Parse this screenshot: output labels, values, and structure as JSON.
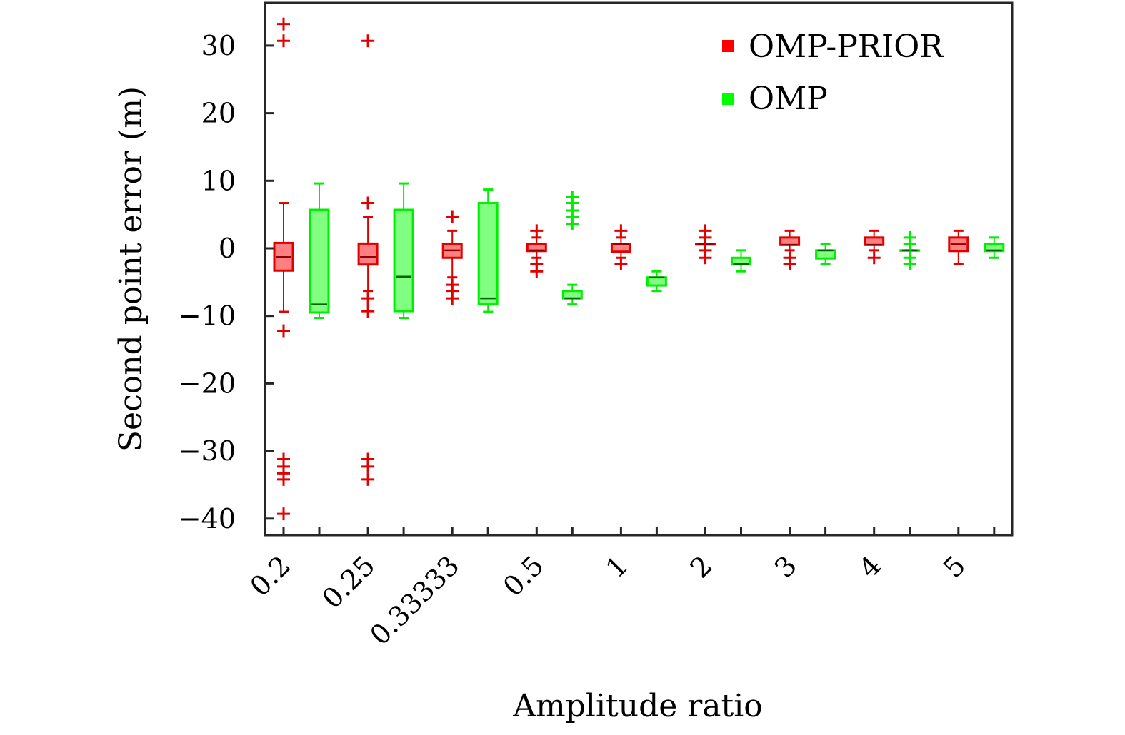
{
  "chart_data": {
    "type": "box",
    "title": "",
    "xlabel": "Amplitude ratio",
    "ylabel": "Second point error (m)",
    "ylim": [
      -42.4,
      36.3
    ],
    "yticks": [
      30,
      20,
      10,
      0,
      -10,
      -20,
      -30,
      -40
    ],
    "ytick_labels": [
      "30",
      "20",
      "10",
      "0",
      "−10",
      "−20",
      "−30",
      "−40"
    ],
    "categories": [
      "0.2",
      "0.25",
      "0.33333",
      "0.5",
      "1",
      "2",
      "3",
      "4",
      "5"
    ],
    "grid": false,
    "legend": {
      "position": "top-right",
      "entries": [
        {
          "label": "OMP-PRIOR",
          "color": "#ff0000"
        },
        {
          "label": "OMP",
          "color": "#00ff00"
        }
      ]
    },
    "series": [
      {
        "name": "OMP-PRIOR",
        "color": "#e00000",
        "fill": "#ff8080",
        "median_color": "#8b0000",
        "boxes": [
          {
            "low": -9.4,
            "q1": -3.3,
            "median": -1.3,
            "q3": 0.8,
            "high": 6.7,
            "outliers": [
              33.2,
              30.7,
              -12.2,
              -31.2,
              -32.3,
              -33.3,
              -34.2,
              -39.3
            ]
          },
          {
            "low": -6.3,
            "q1": -2.4,
            "median": -1.3,
            "q3": 0.7,
            "high": 4.7,
            "outliers": [
              30.7,
              6.7,
              -7.4,
              -9.3,
              -31.2,
              -32.3,
              -34.2
            ]
          },
          {
            "low": -4.3,
            "q1": -1.4,
            "median": -0.3,
            "q3": 0.6,
            "high": 2.6,
            "outliers": [
              4.7,
              -5.4,
              -6.3,
              -7.4
            ]
          },
          {
            "low": -1.4,
            "q1": -0.4,
            "median": -0.3,
            "q3": 0.6,
            "high": 1.6,
            "outliers": [
              2.6,
              -2.3,
              -3.4
            ]
          },
          {
            "low": -1.4,
            "q1": -0.5,
            "median": 0.6,
            "q3": 0.6,
            "high": 1.6,
            "outliers": [
              2.6,
              -2.3
            ]
          },
          {
            "low": 0.6,
            "q1": 0.6,
            "median": 0.6,
            "q3": 0.6,
            "high": 0.6,
            "outliers": [
              2.6,
              1.6,
              -0.3,
              -1.4
            ]
          },
          {
            "low": -0.3,
            "q1": 0.5,
            "median": 0.5,
            "q3": 1.6,
            "high": 2.6,
            "outliers": [
              -1.4,
              -2.3
            ]
          },
          {
            "low": -0.3,
            "q1": 0.5,
            "median": 0.5,
            "q3": 1.6,
            "high": 2.6,
            "outliers": [
              -1.4
            ]
          },
          {
            "low": -2.3,
            "q1": -0.4,
            "median": 0.6,
            "q3": 1.6,
            "high": 2.6,
            "outliers": []
          }
        ]
      },
      {
        "name": "OMP",
        "color": "#00ee00",
        "fill": "#80ff80",
        "median_color": "#006400",
        "boxes": [
          {
            "low": -10.3,
            "q1": -9.5,
            "median": -8.3,
            "q3": 5.7,
            "high": 9.6,
            "outliers": []
          },
          {
            "low": -10.3,
            "q1": -9.3,
            "median": -4.2,
            "q3": 5.7,
            "high": 9.6,
            "outliers": []
          },
          {
            "low": -9.4,
            "q1": -8.3,
            "median": -7.4,
            "q3": 6.7,
            "high": 8.7,
            "outliers": []
          },
          {
            "low": -8.3,
            "q1": -7.4,
            "median": -7.4,
            "q3": -6.3,
            "high": -5.4,
            "outliers": [
              7.6,
              6.7,
              5.6,
              4.7,
              3.6
            ]
          },
          {
            "low": -6.3,
            "q1": -5.5,
            "median": -4.3,
            "q3": -4.3,
            "high": -3.4,
            "outliers": []
          },
          {
            "low": -3.4,
            "q1": -2.4,
            "median": -2.3,
            "q3": -1.4,
            "high": -0.3,
            "outliers": []
          },
          {
            "low": -2.3,
            "q1": -1.5,
            "median": -0.3,
            "q3": -0.3,
            "high": 0.6,
            "outliers": []
          },
          {
            "low": -0.3,
            "q1": -0.3,
            "median": -0.3,
            "q3": -0.3,
            "high": -0.3,
            "outliers": [
              1.6,
              0.6,
              -1.4,
              -2.3
            ]
          },
          {
            "low": -1.4,
            "q1": -0.4,
            "median": -0.3,
            "q3": 0.6,
            "high": 1.6,
            "outliers": []
          }
        ]
      }
    ]
  }
}
